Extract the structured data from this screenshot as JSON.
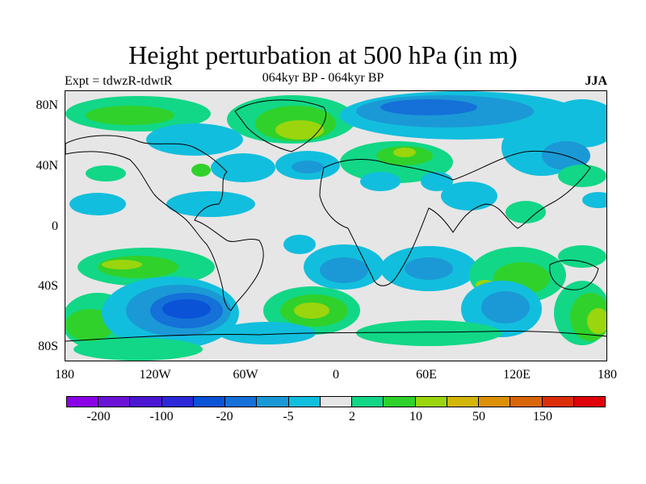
{
  "header": {
    "title": "Height perturbation at 500 hPa (in m)",
    "left_label": "Expt = tdwzR-tdwtR",
    "center_label": "064kyr BP - 064kyr BP",
    "right_label": "JJA"
  },
  "axes": {
    "lat_ticks": [
      "80N",
      "40N",
      "0",
      "40S",
      "80S"
    ],
    "lon_ticks": [
      "180",
      "120W",
      "60W",
      "0",
      "60E",
      "120E",
      "180"
    ]
  },
  "colorbar": {
    "colors": [
      "#8b00e6",
      "#6b12d6",
      "#4b16d4",
      "#2d29d8",
      "#0a52d6",
      "#1570d8",
      "#1b99d6",
      "#12bedd",
      "#e6e6e6",
      "#12d787",
      "#30d12b",
      "#9bd50d",
      "#d2b608",
      "#dc9006",
      "#d96509",
      "#dc2e0a",
      "#e0000a"
    ],
    "labels": [
      "-200",
      "-100",
      "-20",
      "-5",
      "2",
      "10",
      "50",
      "150"
    ]
  },
  "map": {
    "background": "#e6e6e6",
    "fills": {
      "blue_dark": "#0a52d6",
      "blue": "#1b99d6",
      "cyan": "#12bedd",
      "teal": "#12d787",
      "green": "#30d12b",
      "yellowgreen": "#9bd50d",
      "yellow": "#d2b608"
    }
  }
}
